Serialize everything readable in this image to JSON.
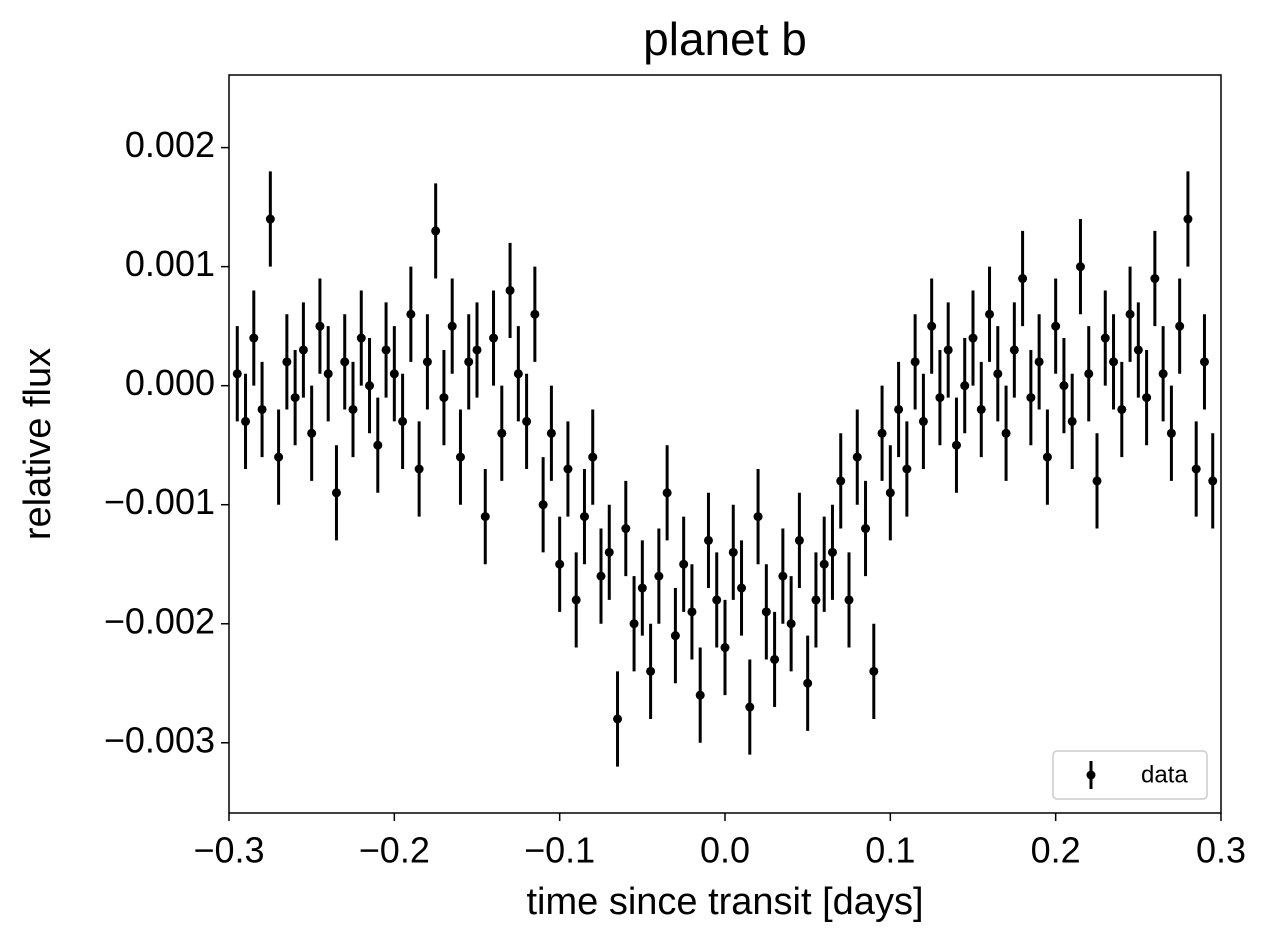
{
  "chart_data": {
    "type": "errorbar-scatter",
    "title": "planet b",
    "x_label": "time since transit [days]",
    "y_label": "relative flux",
    "xlim": [
      -0.3,
      0.3
    ],
    "ylim": [
      -0.00359,
      0.00261
    ],
    "xticks": [
      {
        "value": -0.3,
        "label": "−0.3"
      },
      {
        "value": -0.2,
        "label": "−0.2"
      },
      {
        "value": -0.1,
        "label": "−0.1"
      },
      {
        "value": 0,
        "label": "0.0"
      },
      0.1,
      0.2,
      0.3
    ],
    "yticks": [
      {
        "value": -0.003,
        "label": "−0.003"
      },
      {
        "value": -0.002,
        "label": "−0.002"
      },
      {
        "value": -0.001,
        "label": "−0.001"
      },
      {
        "value": 0,
        "label": "0.000"
      },
      0.001,
      0.002
    ],
    "legend": "lower right",
    "series": [
      {
        "name": "data",
        "color": "#000000",
        "yerr": 0.0004,
        "x": [
          -0.295,
          -0.29,
          -0.285,
          -0.28,
          -0.275,
          -0.27,
          -0.265,
          -0.26,
          -0.255,
          -0.25,
          -0.245,
          -0.24,
          -0.235,
          -0.23,
          -0.225,
          -0.22,
          -0.215,
          -0.21,
          -0.205,
          -0.2,
          -0.195,
          -0.19,
          -0.185,
          -0.18,
          -0.175,
          -0.17,
          -0.165,
          -0.16,
          -0.155,
          -0.15,
          -0.145,
          -0.14,
          -0.135,
          -0.13,
          -0.125,
          -0.12,
          -0.115,
          -0.11,
          -0.105,
          -0.1,
          -0.095,
          -0.09,
          -0.085,
          -0.08,
          -0.075,
          -0.07,
          -0.065,
          -0.06,
          -0.055,
          -0.05,
          -0.045,
          -0.04,
          -0.035,
          -0.03,
          -0.025,
          -0.02,
          -0.015,
          -0.01,
          -0.005,
          0,
          0.005,
          0.01,
          0.015,
          0.02,
          0.025,
          0.03,
          0.035,
          0.04,
          0.045,
          0.05,
          0.055,
          0.06,
          0.065,
          0.07,
          0.075,
          0.08,
          0.085,
          0.09,
          0.095,
          0.1,
          0.105,
          0.11,
          0.115,
          0.12,
          0.125,
          0.13,
          0.135,
          0.14,
          0.145,
          0.15,
          0.155,
          0.16,
          0.165,
          0.17,
          0.175,
          0.18,
          0.185,
          0.19,
          0.195,
          0.2,
          0.205,
          0.21,
          0.215,
          0.22,
          0.225,
          0.23,
          0.235,
          0.24,
          0.245,
          0.25,
          0.255,
          0.26,
          0.265,
          0.27,
          0.275,
          0.28,
          0.285,
          0.29,
          0.295
        ],
        "values": [
          0.0001,
          -0.0003,
          0.0004,
          -0.0002,
          0.0014,
          -0.0006,
          0.0002,
          -0.0001,
          0.0003,
          -0.0004,
          0.0005,
          0.0001,
          -0.0009,
          0.0002,
          -0.0002,
          0.0004,
          0.0,
          -0.0005,
          0.0003,
          0.0001,
          -0.0003,
          0.0006,
          -0.0007,
          0.0002,
          0.0013,
          -0.0001,
          0.0005,
          -0.0006,
          0.0002,
          0.0003,
          -0.0011,
          0.0004,
          -0.0004,
          0.0008,
          0.0001,
          -0.0003,
          0.0006,
          -0.001,
          -0.0004,
          -0.0015,
          -0.0007,
          -0.0018,
          -0.0011,
          -0.0006,
          -0.0016,
          -0.0014,
          -0.0028,
          -0.0012,
          -0.002,
          -0.0017,
          -0.0024,
          -0.0016,
          -0.0009,
          -0.0021,
          -0.0015,
          -0.0019,
          -0.0026,
          -0.0013,
          -0.0018,
          -0.0022,
          -0.0014,
          -0.0017,
          -0.0027,
          -0.0011,
          -0.0019,
          -0.0023,
          -0.0016,
          -0.002,
          -0.0013,
          -0.0025,
          -0.0018,
          -0.0015,
          -0.0014,
          -0.0008,
          -0.0018,
          -0.0006,
          -0.0012,
          -0.0024,
          -0.0004,
          -0.0009,
          -0.0002,
          -0.0007,
          0.0002,
          -0.0003,
          0.0005,
          -0.0001,
          0.0003,
          -0.0005,
          0.0,
          0.0004,
          -0.0002,
          0.0006,
          0.0001,
          -0.0004,
          0.0003,
          0.0009,
          -0.0001,
          0.0002,
          -0.0006,
          0.0005,
          0.0,
          -0.0003,
          0.001,
          0.0001,
          -0.0008,
          0.0004,
          0.0002,
          -0.0002,
          0.0006,
          0.0003,
          -0.0001,
          0.0009,
          0.0001,
          -0.0004,
          0.0005,
          0.0014,
          -0.0007,
          0.0002,
          -0.0008
        ]
      }
    ]
  }
}
